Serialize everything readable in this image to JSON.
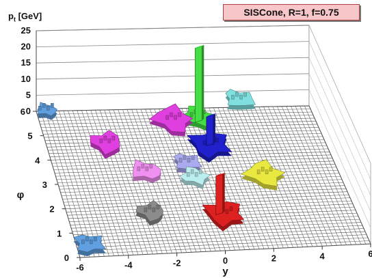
{
  "chart_data": {
    "type": "lego-histogram",
    "title": "SISCone, R=1, f=0.75",
    "xlabel": "y",
    "ylabel": "φ",
    "zlabel_main": "p",
    "zlabel_sub": "t",
    "zlabel_unit": "[GeV]",
    "xlim": [
      -6,
      6
    ],
    "ylim": [
      0,
      6
    ],
    "zlim": [
      0,
      25
    ],
    "x_ticks": [
      "-6",
      "-4",
      "-2",
      "0",
      "2",
      "4",
      "6"
    ],
    "y_ticks": [
      "0",
      "1",
      "2",
      "3",
      "4",
      "5",
      "6"
    ],
    "z_ticks": [
      "0",
      "5",
      "10",
      "15",
      "20",
      "25"
    ],
    "grid": true,
    "jets": [
      {
        "color": "#8c8c8c",
        "eta": -2.5,
        "phi": 1.6,
        "size": 0.6
      },
      {
        "color": "#e040e0",
        "eta": -3.4,
        "phi": 4.5,
        "size": 0.7
      },
      {
        "color": "#f090f0",
        "eta": -2.2,
        "phi": 3.3,
        "size": 0.6
      },
      {
        "color": "#60a0e0",
        "eta": -5.5,
        "phi": 0.4,
        "size": 0.6
      },
      {
        "color": "#60a0e0",
        "eta": -5.6,
        "phi": 5.9,
        "size": 0.4
      },
      {
        "color": "#aaaaee",
        "eta": -0.3,
        "phi": 3.6,
        "size": 0.55
      },
      {
        "color": "#bbeeee",
        "eta": -0.2,
        "phi": 3.0,
        "size": 0.55
      },
      {
        "color": "#e040e0",
        "eta": -0.2,
        "phi": 5.4,
        "size": 0.85
      },
      {
        "color": "#80e0e0",
        "eta": 3.0,
        "phi": 6.2,
        "size": 0.6
      },
      {
        "color": "#e8e840",
        "eta": 2.8,
        "phi": 3.0,
        "size": 0.8
      },
      {
        "color": "#2020cc",
        "eta": 1.0,
        "phi": 4.3,
        "size": 0.85
      },
      {
        "color": "#44dd44",
        "eta": 0.9,
        "phi": 5.5,
        "size": 0.65
      },
      {
        "color": "#dd2020",
        "eta": 0.5,
        "phi": 1.4,
        "size": 0.8
      }
    ],
    "spikes": [
      {
        "color": "#44dd44",
        "eta": 0.9,
        "phi": 5.4,
        "pt": 23
      },
      {
        "color": "#2020cc",
        "eta": 1.0,
        "phi": 4.4,
        "pt": 9
      },
      {
        "color": "#dd2020",
        "eta": 0.3,
        "phi": 1.5,
        "pt": 12
      }
    ]
  }
}
